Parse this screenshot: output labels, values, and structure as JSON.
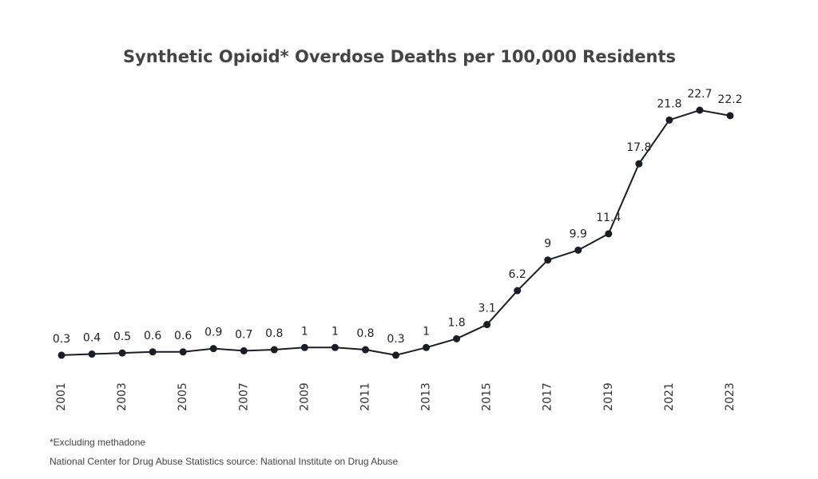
{
  "chart_data": {
    "type": "line",
    "title": "Synthetic Opioid* Overdose Deaths per 100,000 Residents",
    "categories": [
      "2001",
      null,
      "2003",
      null,
      "2005",
      null,
      "2007",
      null,
      "2009",
      null,
      "2011",
      null,
      "2013",
      null,
      "2015",
      null,
      "2017",
      null,
      "2019",
      null,
      "2021",
      null,
      "2023"
    ],
    "values": [
      0.3,
      0.4,
      0.5,
      0.6,
      0.6,
      0.9,
      0.7,
      0.8,
      1,
      1,
      0.8,
      0.3,
      1,
      1.8,
      3.1,
      6.2,
      9,
      9.9,
      11.4,
      17.8,
      21.8,
      22.7,
      22.2
    ],
    "color": "#1a1d24",
    "footnote": "*Excluding methadone",
    "source": "National Center for Drug Abuse Statistics source: National Institute on Drug Abuse"
  }
}
